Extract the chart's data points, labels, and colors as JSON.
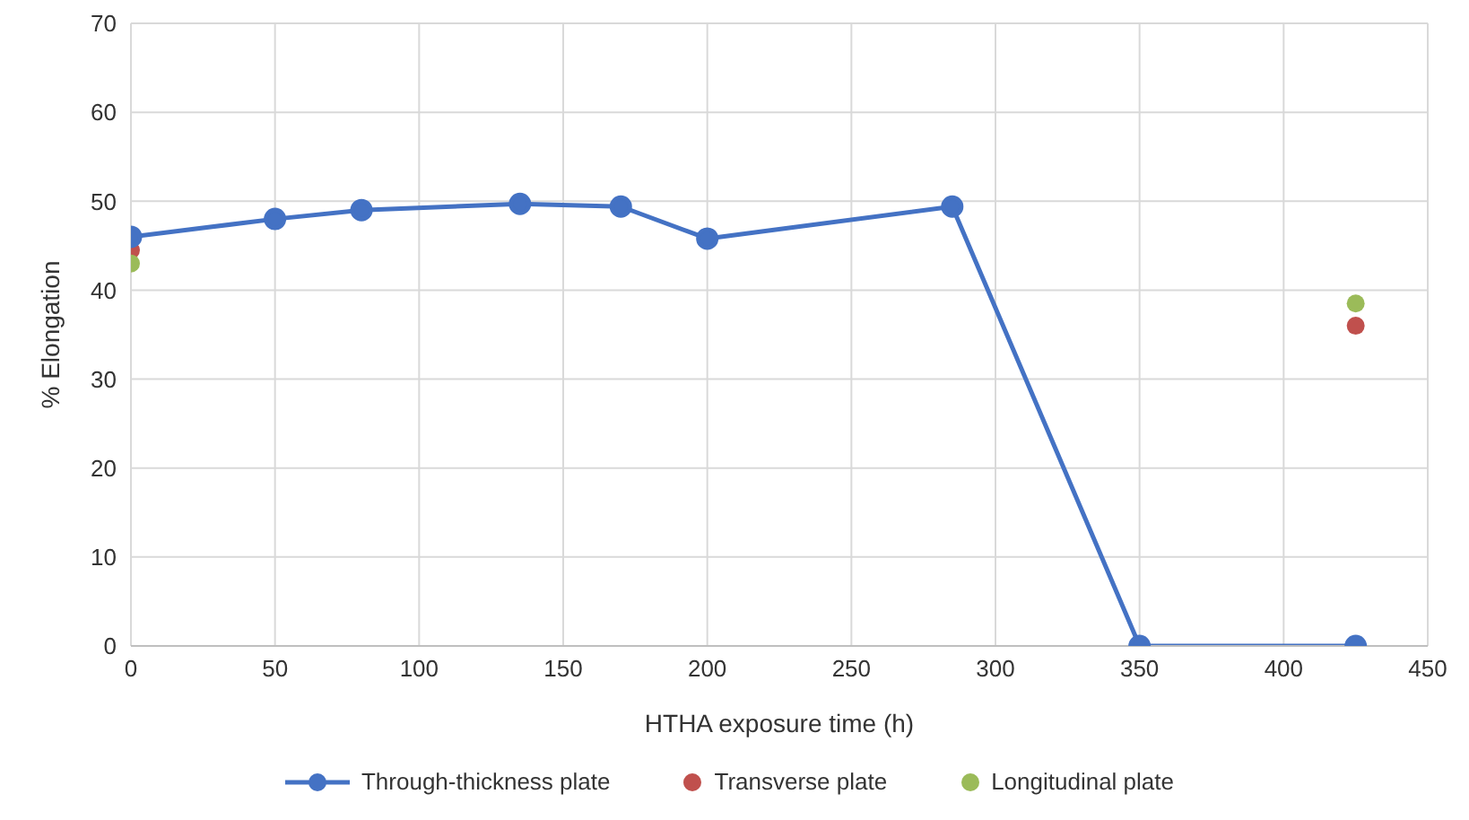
{
  "chart_data": {
    "type": "line",
    "xlabel": "HTHA exposure time (h)",
    "ylabel": "% Elongation",
    "xlim": [
      0,
      450
    ],
    "xticks": [
      0,
      50,
      100,
      150,
      200,
      250,
      300,
      350,
      400,
      450
    ],
    "ylim": [
      0,
      70
    ],
    "yticks": [
      0,
      10,
      20,
      30,
      40,
      50,
      60,
      70
    ],
    "grid": true,
    "legend": "bottom",
    "marker": "circle",
    "line_style": "solid",
    "series": [
      {
        "name": "Through-thickness plate",
        "type": "line",
        "color": "#4472c4",
        "x": [
          0,
          50,
          80,
          135,
          170,
          200,
          285,
          350,
          425
        ],
        "values": [
          46,
          48,
          49,
          49.7,
          49.4,
          45.8,
          49.4,
          0,
          0
        ]
      },
      {
        "name": "Transverse plate",
        "type": "scatter",
        "color": "#c0504d",
        "x": [
          0,
          425
        ],
        "values": [
          44.5,
          36
        ]
      },
      {
        "name": "Longitudinal plate",
        "type": "scatter",
        "color": "#9bbb59",
        "x": [
          0,
          425
        ],
        "values": [
          43,
          38.5
        ]
      }
    ]
  }
}
